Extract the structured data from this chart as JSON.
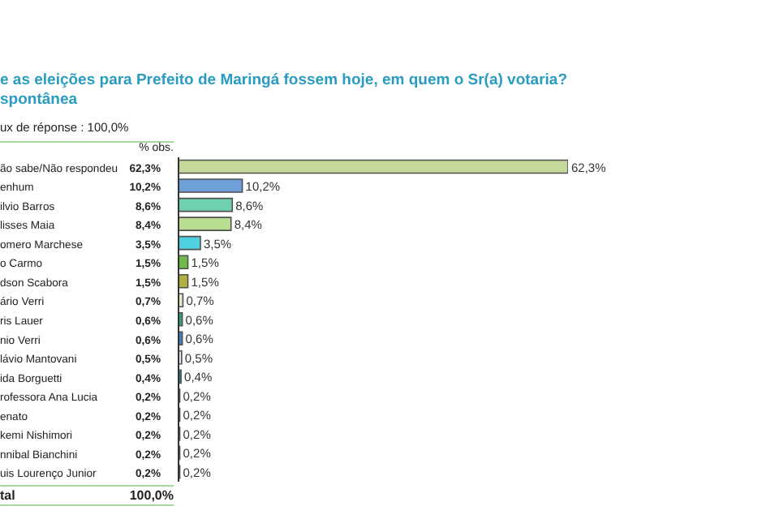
{
  "chart_data": {
    "type": "bar",
    "orientation": "horizontal",
    "title": "e as eleições para Prefeito de Maringá fossem hoje, em quem o Sr(a) votaria?",
    "subtitle": "spontânea",
    "annotations": [
      "ux de réponse : 100,0%",
      "% obs.",
      "tal",
      "100,0%"
    ],
    "categories": [
      "ão sabe/Não respondeu",
      "enhum",
      "ilvio Barros",
      "lisses Maia",
      "omero Marchese",
      "o Carmo",
      "dson Scabora",
      "ário Verri",
      "ris Lauer",
      "nio Verri",
      "lávio Mantovani",
      "ida Borguetti",
      "rofessora Ana Lucia",
      "enato",
      "kemi Nishimori",
      "nnibal Bianchini",
      "uis Lourenço Junior"
    ],
    "values": [
      62.3,
      10.2,
      8.6,
      8.4,
      3.5,
      1.5,
      1.5,
      0.7,
      0.6,
      0.6,
      0.5,
      0.4,
      0.2,
      0.2,
      0.2,
      0.2,
      0.2
    ],
    "colors": [
      "#c4d89a",
      "#6f9fd8",
      "#6fd0b0",
      "#b8dc90",
      "#4fd0e0",
      "#6fb84a",
      "#b0b040",
      "#e0ecc0",
      "#30a080",
      "#4080c0",
      "#d8e4f0",
      "#208080",
      "#ffffff",
      "#ffffff",
      "#ffffff",
      "#ffffff",
      "#ffffff"
    ],
    "value_labels": [
      "62,3%",
      "10,2%",
      "8,6%",
      "8,4%",
      "3,5%",
      "1,5%",
      "1,5%",
      "0,7%",
      "0,6%",
      "0,6%",
      "0,5%",
      "0,4%",
      "0,2%",
      "0,2%",
      "0,2%",
      "0,2%",
      "0,2%"
    ]
  }
}
